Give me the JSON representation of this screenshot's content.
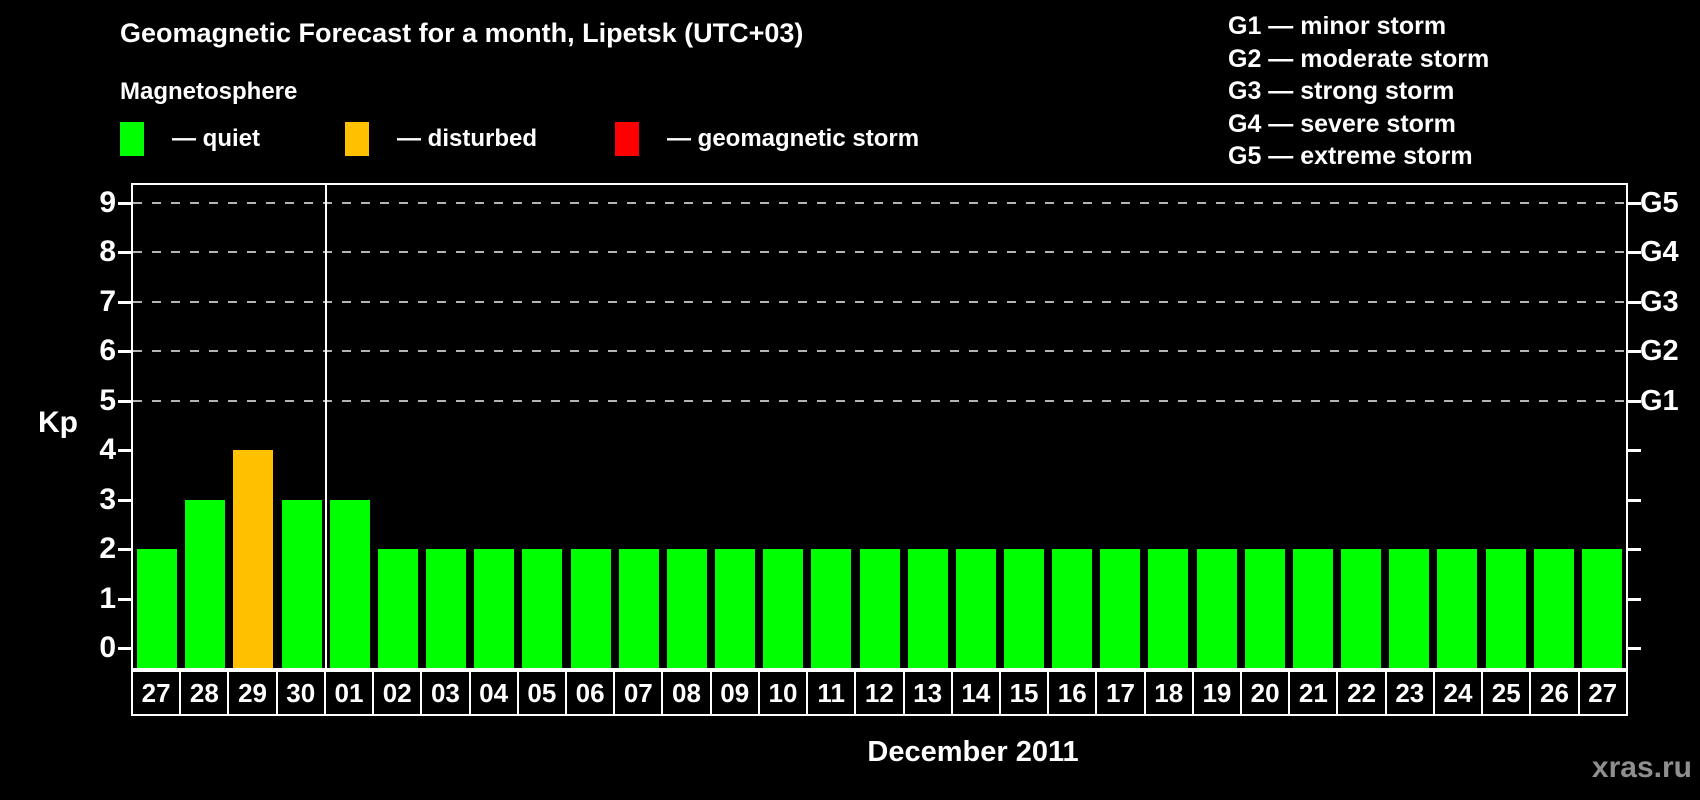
{
  "title": "Geomagnetic Forecast for a month, Lipetsk (UTC+03)",
  "subtitle": "Magnetosphere",
  "legend": {
    "items": [
      {
        "state": "quiet",
        "label": "— quiet",
        "color": "#00ff00"
      },
      {
        "state": "disturbed",
        "label": "— disturbed",
        "color": "#ffc000"
      },
      {
        "state": "storm",
        "label": "— geomagnetic storm",
        "color": "#ff0000"
      }
    ]
  },
  "storm_legend": [
    "G1 — minor storm",
    "G2 — moderate storm",
    "G3 — strong storm",
    "G4 — severe storm",
    "G5 — extreme storm"
  ],
  "watermark": "xras.ru",
  "chart_data": {
    "type": "bar",
    "title": "Geomagnetic Forecast for a month, Lipetsk (UTC+03)",
    "xlabel": "December 2011",
    "ylabel": "Kp",
    "ylim": [
      0,
      9
    ],
    "yticks": [
      0,
      1,
      2,
      3,
      4,
      5,
      6,
      7,
      8,
      9
    ],
    "grid_kp": [
      5,
      6,
      7,
      8,
      9
    ],
    "right_axis": [
      {
        "kp": 5,
        "label": "G1"
      },
      {
        "kp": 6,
        "label": "G2"
      },
      {
        "kp": 7,
        "label": "G3"
      },
      {
        "kp": 8,
        "label": "G4"
      },
      {
        "kp": 9,
        "label": "G5"
      }
    ],
    "month_separator_index": 4,
    "categories": [
      "27",
      "28",
      "29",
      "30",
      "01",
      "02",
      "03",
      "04",
      "05",
      "06",
      "07",
      "08",
      "09",
      "10",
      "11",
      "12",
      "13",
      "14",
      "15",
      "16",
      "17",
      "18",
      "19",
      "20",
      "21",
      "22",
      "23",
      "24",
      "25",
      "26",
      "27"
    ],
    "values": [
      2,
      3,
      4,
      3,
      3,
      2,
      2,
      2,
      2,
      2,
      2,
      2,
      2,
      2,
      2,
      2,
      2,
      2,
      2,
      2,
      2,
      2,
      2,
      2,
      2,
      2,
      2,
      2,
      2,
      2,
      2
    ],
    "states": [
      "quiet",
      "quiet",
      "disturbed",
      "quiet",
      "quiet",
      "quiet",
      "quiet",
      "quiet",
      "quiet",
      "quiet",
      "quiet",
      "quiet",
      "quiet",
      "quiet",
      "quiet",
      "quiet",
      "quiet",
      "quiet",
      "quiet",
      "quiet",
      "quiet",
      "quiet",
      "quiet",
      "quiet",
      "quiet",
      "quiet",
      "quiet",
      "quiet",
      "quiet",
      "quiet",
      "quiet"
    ],
    "state_colors": {
      "quiet": "#00ff00",
      "disturbed": "#ffc000",
      "storm": "#ff0000"
    }
  }
}
